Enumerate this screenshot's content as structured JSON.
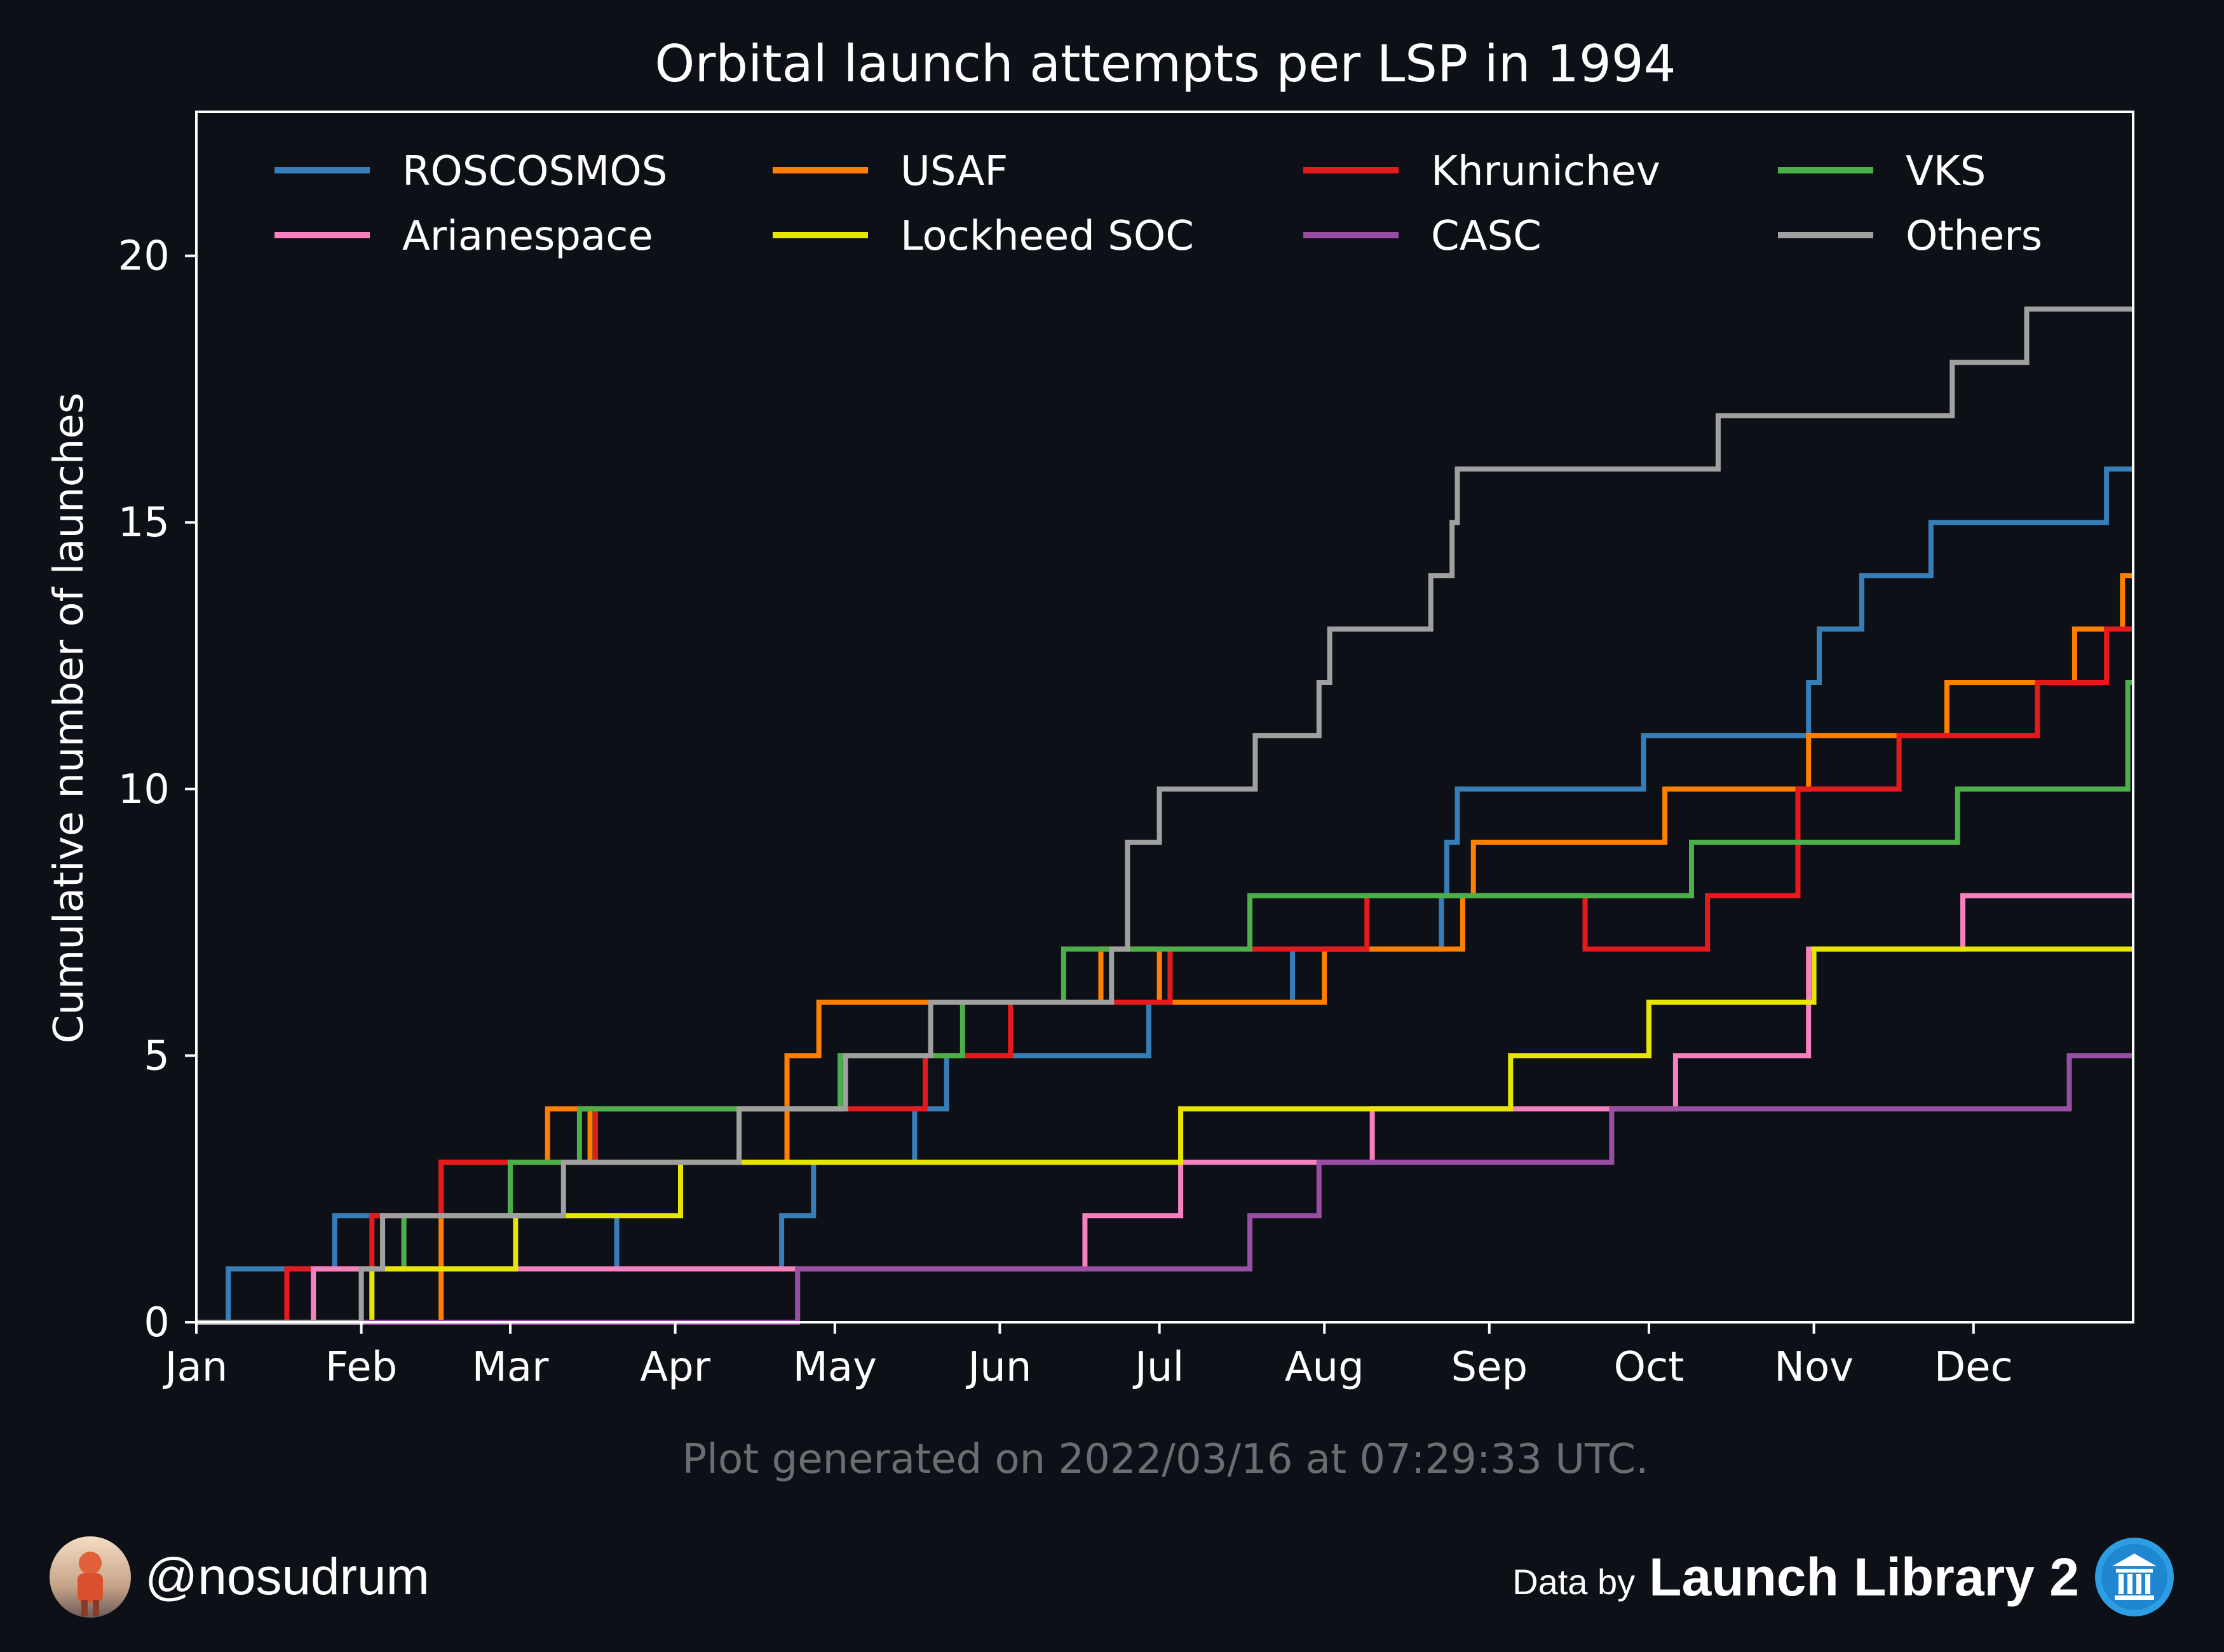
{
  "footnote": "Plot generated on 2022/03/16 at 07:29:33 UTC.",
  "footer": {
    "handle": "@nosudrum",
    "data_by": "Data by",
    "source_name": "Launch Library 2"
  },
  "colors": {
    "background": "#0d1017",
    "axes": "#ffffff",
    "footnote": "#6b6d70"
  },
  "icons": {
    "avatar": "avatar-icon",
    "source_logo": "launch-library-logo-icon"
  },
  "chart_data": {
    "type": "line",
    "step": true,
    "title": "Orbital launch attempts per LSP in 1994",
    "xlabel": "",
    "ylabel": "Cumulative number of launches",
    "xlim": [
      "1994-01-01",
      "1994-12-31"
    ],
    "ylim": [
      0,
      22.7
    ],
    "grid": false,
    "legend_position": "top",
    "x_ticks": [
      "Jan",
      "Feb",
      "Mar",
      "Apr",
      "May",
      "Jun",
      "Jul",
      "Aug",
      "Sep",
      "Oct",
      "Nov",
      "Dec"
    ],
    "y_ticks": [
      0,
      5,
      10,
      15,
      20
    ],
    "series": [
      {
        "name": "ROSCOSMOS",
        "color": "#377eb8",
        "steps": [
          [
            "1994-01-07",
            1
          ],
          [
            "1994-01-27",
            2
          ],
          [
            "1994-03-21",
            1
          ],
          [
            "1994-04-21",
            2
          ],
          [
            "1994-04-27",
            3
          ],
          [
            "1994-05-16",
            4
          ],
          [
            "1994-05-22",
            5
          ],
          [
            "1994-06-29",
            6
          ],
          [
            "1994-07-26",
            7
          ],
          [
            "1994-08-23",
            8
          ],
          [
            "1994-08-24",
            9
          ],
          [
            "1994-08-26",
            10
          ],
          [
            "1994-09-30",
            11
          ],
          [
            "1994-10-31",
            12
          ],
          [
            "1994-11-02",
            13
          ],
          [
            "1994-11-10",
            14
          ],
          [
            "1994-11-23",
            15
          ],
          [
            "1994-12-26",
            16
          ]
        ]
      },
      {
        "name": "USAF",
        "color": "#ff7f00",
        "steps": [
          [
            "1994-02-16",
            3
          ],
          [
            "1994-03-08",
            4
          ],
          [
            "1994-03-16",
            3
          ],
          [
            "1994-04-22",
            5
          ],
          [
            "1994-04-28",
            6
          ],
          [
            "1994-06-20",
            7
          ],
          [
            "1994-07-01",
            6
          ],
          [
            "1994-08-01",
            7
          ],
          [
            "1994-08-27",
            8
          ],
          [
            "1994-08-29",
            9
          ],
          [
            "1994-10-04",
            10
          ],
          [
            "1994-10-31",
            11
          ],
          [
            "1994-11-26",
            12
          ],
          [
            "1994-12-20",
            13
          ],
          [
            "1994-12-29",
            14
          ]
        ]
      },
      {
        "name": "Khrunichev",
        "color": "#e41a1c",
        "steps": [
          [
            "1994-01-18",
            1
          ],
          [
            "1994-02-03",
            2
          ],
          [
            "1994-02-16",
            3
          ],
          [
            "1994-03-17",
            4
          ],
          [
            "1994-05-18",
            5
          ],
          [
            "1994-06-03",
            6
          ],
          [
            "1994-07-03",
            7
          ],
          [
            "1994-08-09",
            8
          ],
          [
            "1994-09-19",
            7
          ],
          [
            "1994-10-12",
            8
          ],
          [
            "1994-10-29",
            10
          ],
          [
            "1994-11-17",
            11
          ],
          [
            "1994-12-13",
            12
          ],
          [
            "1994-12-26",
            13
          ]
        ]
      },
      {
        "name": "VKS",
        "color": "#4daf4a",
        "steps": [
          [
            "1994-01-23",
            1
          ],
          [
            "1994-02-09",
            2
          ],
          [
            "1994-03-01",
            3
          ],
          [
            "1994-03-14",
            4
          ],
          [
            "1994-05-02",
            5
          ],
          [
            "1994-05-25",
            6
          ],
          [
            "1994-06-13",
            7
          ],
          [
            "1994-07-18",
            8
          ],
          [
            "1994-10-09",
            9
          ],
          [
            "1994-11-28",
            10
          ],
          [
            "1994-12-30",
            12
          ]
        ]
      },
      {
        "name": "Arianespace",
        "color": "#f781bf",
        "steps": [
          [
            "1994-01-23",
            1
          ],
          [
            "1994-06-17",
            2
          ],
          [
            "1994-07-05",
            3
          ],
          [
            "1994-08-10",
            4
          ],
          [
            "1994-10-06",
            5
          ],
          [
            "1994-10-31",
            7
          ],
          [
            "1994-11-29",
            8
          ]
        ]
      },
      {
        "name": "Lockheed SOC",
        "color": "#e6e600",
        "steps": [
          [
            "1994-02-03",
            1
          ],
          [
            "1994-03-02",
            2
          ],
          [
            "1994-04-02",
            3
          ],
          [
            "1994-07-05",
            4
          ],
          [
            "1994-09-05",
            5
          ],
          [
            "1994-10-01",
            6
          ],
          [
            "1994-11-01",
            7
          ]
        ]
      },
      {
        "name": "CASC",
        "color": "#984ea3",
        "steps": [
          [
            "1994-04-24",
            1
          ],
          [
            "1994-07-18",
            2
          ],
          [
            "1994-07-31",
            3
          ],
          [
            "1994-09-24",
            4
          ],
          [
            "1994-12-19",
            5
          ]
        ]
      },
      {
        "name": "Others",
        "color": "#a0a0a0",
        "steps": [
          [
            "1994-02-01",
            1
          ],
          [
            "1994-02-05",
            2
          ],
          [
            "1994-03-11",
            3
          ],
          [
            "1994-04-13",
            4
          ],
          [
            "1994-05-03",
            5
          ],
          [
            "1994-05-19",
            6
          ],
          [
            "1994-06-22",
            7
          ],
          [
            "1994-06-25",
            9
          ],
          [
            "1994-07-01",
            10
          ],
          [
            "1994-07-19",
            11
          ],
          [
            "1994-07-31",
            12
          ],
          [
            "1994-08-02",
            13
          ],
          [
            "1994-08-21",
            14
          ],
          [
            "1994-08-25",
            15
          ],
          [
            "1994-08-26",
            16
          ],
          [
            "1994-10-14",
            17
          ],
          [
            "1994-11-27",
            18
          ],
          [
            "1994-12-11",
            19
          ]
        ]
      }
    ]
  }
}
